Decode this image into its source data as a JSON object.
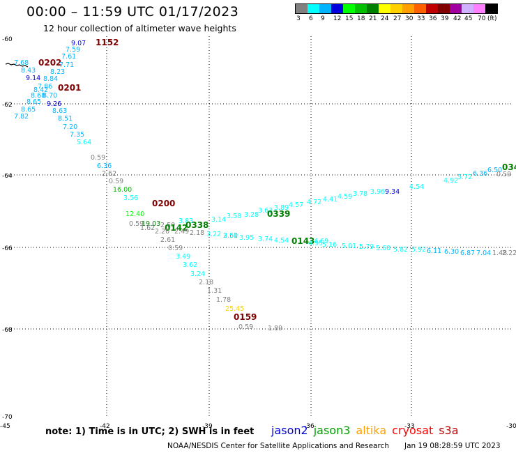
{
  "header": {
    "title": "00:00 – 11:59 UTC 01/17/2023",
    "subtitle": "12 hour collection of altimeter wave heights"
  },
  "color_scale": {
    "labels": [
      "3",
      "6",
      "9",
      "12",
      "15",
      "18",
      "21",
      "24",
      "27",
      "30",
      "33",
      "36",
      "39",
      "42",
      "45",
      "70",
      "(ft)"
    ],
    "colors": [
      "#808080",
      "#00ffff",
      "#00b4ff",
      "#0000dc",
      "#00ff00",
      "#00c000",
      "#008000",
      "#ffff00",
      "#ffd000",
      "#ffa000",
      "#ff6000",
      "#c00000",
      "#800000",
      "#a000a0",
      "#d0b0ff",
      "#ff80ff",
      "#000000"
    ]
  },
  "map": {
    "lat_labels": [
      "-60",
      "-62",
      "-64",
      "-66",
      "-68",
      "-70"
    ],
    "lon_labels": [
      "-45",
      "-42",
      "-39",
      "-36",
      "-33",
      "-30"
    ],
    "observations": [
      {
        "t": "9.07",
        "c": "#0000dc"
      },
      {
        "t": "1152",
        "c": "#800000"
      },
      {
        "t": "7.59",
        "c": "#00b4ff"
      },
      {
        "t": "7.61",
        "c": "#00b4ff"
      },
      {
        "t": "7.68",
        "c": "#00b4ff"
      },
      {
        "t": "0202",
        "c": "#800000"
      },
      {
        "t": "7.71",
        "c": "#00b4ff"
      },
      {
        "t": "8.43",
        "c": "#00b4ff"
      },
      {
        "t": "8.23",
        "c": "#00b4ff"
      },
      {
        "t": "9.14",
        "c": "#0000dc"
      },
      {
        "t": "8.84",
        "c": "#00b4ff"
      },
      {
        "t": "7.86",
        "c": "#00b4ff"
      },
      {
        "t": "0201",
        "c": "#800000"
      },
      {
        "t": "8.42",
        "c": "#00b4ff"
      },
      {
        "t": "8.68",
        "c": "#00b4ff"
      },
      {
        "t": "8.70",
        "c": "#00b4ff"
      },
      {
        "t": "8.65",
        "c": "#00b4ff"
      },
      {
        "t": "9.26",
        "c": "#0000dc"
      },
      {
        "t": "8.65",
        "c": "#00b4ff"
      },
      {
        "t": "8.63",
        "c": "#00b4ff"
      },
      {
        "t": "7.82",
        "c": "#00b4ff"
      },
      {
        "t": "8.51",
        "c": "#00b4ff"
      },
      {
        "t": "7.20",
        "c": "#00b4ff"
      },
      {
        "t": "7.35",
        "c": "#00b4ff"
      },
      {
        "t": "5.64",
        "c": "#00ffff"
      },
      {
        "t": "0.59",
        "c": "#808080"
      },
      {
        "t": "6.36",
        "c": "#00b4ff"
      },
      {
        "t": "2.62",
        "c": "#808080"
      },
      {
        "t": "0.59",
        "c": "#808080"
      },
      {
        "t": "16.00",
        "c": "#00c000"
      },
      {
        "t": "3.56",
        "c": "#00ffff"
      },
      {
        "t": "0.59",
        "c": "#808080"
      },
      {
        "t": "0200",
        "c": "#800000"
      },
      {
        "t": "12.40",
        "c": "#00ff00"
      },
      {
        "t": "19.03",
        "c": "#008000"
      },
      {
        "t": "1.62",
        "c": "#808080"
      },
      {
        "t": "2.50",
        "c": "#808080"
      },
      {
        "t": "3.83",
        "c": "#00ffff"
      },
      {
        "t": "0142",
        "c": "#008000"
      },
      {
        "t": "0338",
        "c": "#008000"
      },
      {
        "t": "2.20",
        "c": "#808080"
      },
      {
        "t": "2.49",
        "c": "#808080"
      },
      {
        "t": "2.18",
        "c": "#808080"
      },
      {
        "t": "3.22",
        "c": "#00ffff"
      },
      {
        "t": "3.14",
        "c": "#00ffff"
      },
      {
        "t": "3.58",
        "c": "#00ffff"
      },
      {
        "t": "3.28",
        "c": "#00ffff"
      },
      {
        "t": "2.61",
        "c": "#808080"
      },
      {
        "t": "3.63",
        "c": "#00ffff"
      },
      {
        "t": "3.89",
        "c": "#00ffff"
      },
      {
        "t": "0339",
        "c": "#008000"
      },
      {
        "t": "4.57",
        "c": "#00ffff"
      },
      {
        "t": "4.72",
        "c": "#00ffff"
      },
      {
        "t": "4.41",
        "c": "#00ffff"
      },
      {
        "t": "4.59",
        "c": "#00ffff"
      },
      {
        "t": "3.78",
        "c": "#00ffff"
      },
      {
        "t": "3.96",
        "c": "#00ffff"
      },
      {
        "t": "9.34",
        "c": "#0000dc"
      },
      {
        "t": "4.54",
        "c": "#00ffff"
      },
      {
        "t": "4.92",
        "c": "#00ffff"
      },
      {
        "t": "5.72",
        "c": "#00ffff"
      },
      {
        "t": "6.36",
        "c": "#00b4ff"
      },
      {
        "t": "6.50",
        "c": "#00b4ff"
      },
      {
        "t": "034",
        "c": "#008000"
      },
      {
        "t": "0.59",
        "c": "#808080"
      },
      {
        "t": "2.61",
        "c": "#808080"
      },
      {
        "t": "3.50",
        "c": "#00ffff"
      },
      {
        "t": "3.95",
        "c": "#00ffff"
      },
      {
        "t": "3.74",
        "c": "#00ffff"
      },
      {
        "t": "4.54",
        "c": "#00ffff"
      },
      {
        "t": "0143",
        "c": "#008000"
      },
      {
        "t": "4.69",
        "c": "#00ffff"
      },
      {
        "t": "4.95",
        "c": "#00ffff"
      },
      {
        "t": "5.16",
        "c": "#00ffff"
      },
      {
        "t": "5.01",
        "c": "#00ffff"
      },
      {
        "t": "5.79",
        "c": "#00ffff"
      },
      {
        "t": "5.60",
        "c": "#00ffff"
      },
      {
        "t": "5.82",
        "c": "#00ffff"
      },
      {
        "t": "5.92",
        "c": "#00ffff"
      },
      {
        "t": "6.11",
        "c": "#00b4ff"
      },
      {
        "t": "6.30",
        "c": "#00b4ff"
      },
      {
        "t": "6.87",
        "c": "#00b4ff"
      },
      {
        "t": "7.04",
        "c": "#00b4ff"
      },
      {
        "t": "1.48",
        "c": "#808080"
      },
      {
        "t": "2.22",
        "c": "#808080"
      },
      {
        "t": "0.59",
        "c": "#808080"
      },
      {
        "t": "3.49",
        "c": "#00ffff"
      },
      {
        "t": "3.62",
        "c": "#00ffff"
      },
      {
        "t": "3.24",
        "c": "#00ffff"
      },
      {
        "t": "2.18",
        "c": "#808080"
      },
      {
        "t": "1.31",
        "c": "#808080"
      },
      {
        "t": "1.78",
        "c": "#808080"
      },
      {
        "t": "25.45",
        "c": "#ffd000"
      },
      {
        "t": "0159",
        "c": "#800000"
      },
      {
        "t": "0.59",
        "c": "#808080"
      },
      {
        "t": "1.89",
        "c": "#808080"
      }
    ]
  },
  "footer": {
    "note": "note:  1) Time is in UTC;  2) SWH is in feet",
    "satellites": [
      {
        "name": "jason2",
        "color": "#0000dc"
      },
      {
        "name": "jason3",
        "color": "#00a000"
      },
      {
        "name": "altika",
        "color": "#ffa000"
      },
      {
        "name": "cryosat",
        "color": "#ff0000"
      },
      {
        "name": "s3a",
        "color": "#c00000"
      }
    ],
    "credit": "NOAA/NESDIS Center for Satellite Applications and Research",
    "timestamp": "Jan 19 08:28:59 UTC 2023"
  }
}
